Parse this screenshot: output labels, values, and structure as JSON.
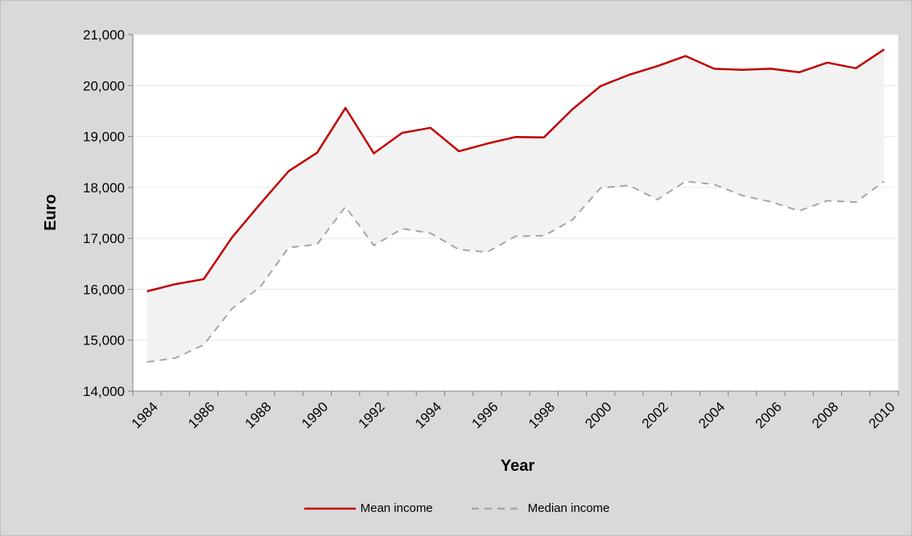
{
  "colors": {
    "mean": "#c00000",
    "median": "#a6a6a6",
    "band": "#f2f2f2",
    "grid": "#e6e6e6",
    "plot_bg": "#ffffff",
    "frame_bg": "#d9d9d9"
  },
  "chart_data": {
    "type": "line",
    "xlabel": "Year",
    "ylabel": "Euro",
    "ylim": [
      14000,
      21000
    ],
    "yticks": [
      "14,000",
      "15,000",
      "16,000",
      "17,000",
      "18,000",
      "19,000",
      "20,000",
      "21,000"
    ],
    "x": [
      1984,
      1985,
      1986,
      1987,
      1988,
      1989,
      1990,
      1991,
      1992,
      1993,
      1994,
      1995,
      1996,
      1997,
      1998,
      1999,
      2000,
      2001,
      2002,
      2003,
      2004,
      2005,
      2006,
      2007,
      2008,
      2009,
      2010
    ],
    "xticks": [
      "1984",
      "1986",
      "1988",
      "1990",
      "1992",
      "1994",
      "1996",
      "1998",
      "2000",
      "2002",
      "2004",
      "2006",
      "2008",
      "2010"
    ],
    "grid": true,
    "legend_position": "bottom",
    "shaded_band_between_series": true,
    "series": [
      {
        "name": "Mean income",
        "style": "solid",
        "values": [
          15960,
          16100,
          16200,
          17020,
          17680,
          18320,
          18680,
          19560,
          18670,
          19070,
          19170,
          18710,
          18860,
          18990,
          18980,
          19530,
          19990,
          20210,
          20380,
          20580,
          20330,
          20310,
          20330,
          20260,
          20450,
          20340,
          20710
        ]
      },
      {
        "name": "Median income",
        "style": "dashed",
        "values": [
          14570,
          14650,
          14910,
          15620,
          16050,
          16820,
          16880,
          17620,
          16860,
          17190,
          17100,
          16780,
          16730,
          17040,
          17050,
          17360,
          17990,
          18040,
          17760,
          18120,
          18060,
          17840,
          17720,
          17540,
          17740,
          17710,
          18120
        ]
      }
    ]
  }
}
